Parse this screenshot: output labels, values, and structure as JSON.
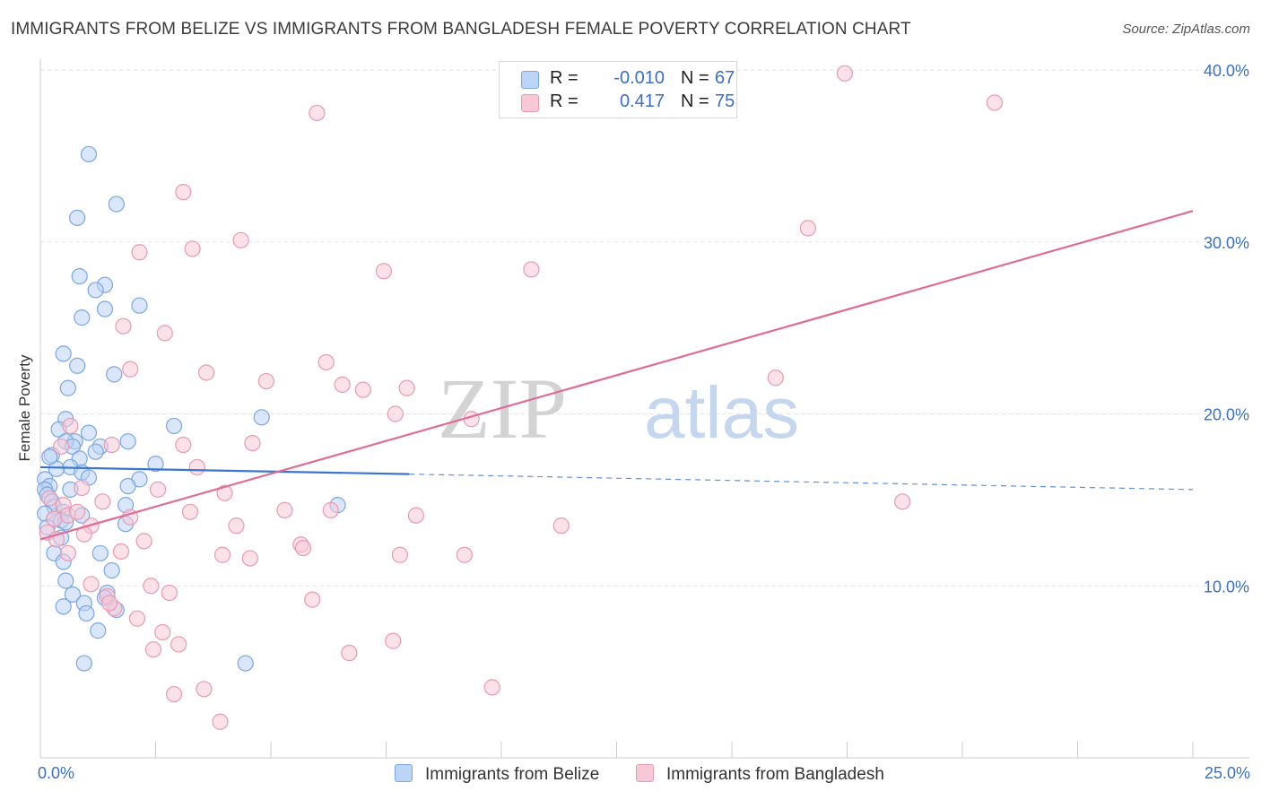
{
  "chart_data": {
    "type": "scatter",
    "title": "IMMIGRANTS FROM BELIZE VS IMMIGRANTS FROM BANGLADESH FEMALE POVERTY CORRELATION CHART",
    "source": "Source: ZipAtlas.com",
    "ylabel": "Female Poverty",
    "xlabel": "",
    "xlim": [
      0,
      25
    ],
    "ylim": [
      0,
      40
    ],
    "x_tick_labels": [
      "0.0%",
      "25.0%"
    ],
    "y_ticks": [
      10,
      20,
      30,
      40
    ],
    "y_tick_labels": [
      "10.0%",
      "20.0%",
      "30.0%",
      "40.0%"
    ],
    "watermark": {
      "part1": "ZIP",
      "part2": "atlas"
    },
    "legend": {
      "r_label": "R =",
      "n_label": "N =",
      "entries": [
        {
          "name": "Immigrants from Belize",
          "r": "-0.010",
          "n": "67"
        },
        {
          "name": "Immigrants from Bangladesh",
          "r": "0.417",
          "n": "75"
        }
      ]
    },
    "colors": {
      "belize_fill": "#bcd4f5",
      "belize_stroke": "#7aa6e3",
      "belize_line": "#3a76d0",
      "bangladesh_fill": "#f8c8d6",
      "bangladesh_stroke": "#e89ab3",
      "bangladesh_line": "#e06c95",
      "axis_text": "#3a6fc4",
      "grid": "#e2e2e2"
    },
    "series": [
      {
        "name": "Immigrants from Belize",
        "trend": {
          "x0": 0,
          "y0": 16.9,
          "x1": 8.0,
          "y1": 16.5,
          "dash_to_x": 25,
          "dash_to_y": 15.6
        },
        "points": [
          [
            1.05,
            35.1
          ],
          [
            0.8,
            31.4
          ],
          [
            1.65,
            32.2
          ],
          [
            0.85,
            28.0
          ],
          [
            1.4,
            27.5
          ],
          [
            1.2,
            27.2
          ],
          [
            1.4,
            26.1
          ],
          [
            2.15,
            26.3
          ],
          [
            0.9,
            25.6
          ],
          [
            0.5,
            23.5
          ],
          [
            0.8,
            22.8
          ],
          [
            1.6,
            22.3
          ],
          [
            0.6,
            21.5
          ],
          [
            0.55,
            19.7
          ],
          [
            2.9,
            19.3
          ],
          [
            4.8,
            19.8
          ],
          [
            0.4,
            19.1
          ],
          [
            1.05,
            18.9
          ],
          [
            0.75,
            18.4
          ],
          [
            0.55,
            18.4
          ],
          [
            1.9,
            18.4
          ],
          [
            1.3,
            18.1
          ],
          [
            0.7,
            18.1
          ],
          [
            0.25,
            17.6
          ],
          [
            0.85,
            17.4
          ],
          [
            1.2,
            17.8
          ],
          [
            0.65,
            16.9
          ],
          [
            2.5,
            17.1
          ],
          [
            0.35,
            16.8
          ],
          [
            0.9,
            16.6
          ],
          [
            1.05,
            16.3
          ],
          [
            0.1,
            16.2
          ],
          [
            2.15,
            16.2
          ],
          [
            0.2,
            15.8
          ],
          [
            1.9,
            15.8
          ],
          [
            0.65,
            15.6
          ],
          [
            0.1,
            15.6
          ],
          [
            0.15,
            15.3
          ],
          [
            0.25,
            14.9
          ],
          [
            0.3,
            14.6
          ],
          [
            0.5,
            14.3
          ],
          [
            1.85,
            14.7
          ],
          [
            6.45,
            14.7
          ],
          [
            0.1,
            14.2
          ],
          [
            0.9,
            14.1
          ],
          [
            0.3,
            13.9
          ],
          [
            0.45,
            13.8
          ],
          [
            0.55,
            13.7
          ],
          [
            0.15,
            13.4
          ],
          [
            0.45,
            12.8
          ],
          [
            0.3,
            11.9
          ],
          [
            1.3,
            11.9
          ],
          [
            1.55,
            10.9
          ],
          [
            0.55,
            10.3
          ],
          [
            0.7,
            9.5
          ],
          [
            1.45,
            9.6
          ],
          [
            1.4,
            9.3
          ],
          [
            0.95,
            9.0
          ],
          [
            0.5,
            8.8
          ],
          [
            1.0,
            8.4
          ],
          [
            1.65,
            8.6
          ],
          [
            1.25,
            7.4
          ],
          [
            0.95,
            5.5
          ],
          [
            4.45,
            5.5
          ],
          [
            1.85,
            13.6
          ],
          [
            0.2,
            17.5
          ],
          [
            0.5,
            11.4
          ]
        ]
      },
      {
        "name": "Immigrants from Bangladesh",
        "trend": {
          "x0": 0,
          "y0": 12.7,
          "x1": 25,
          "y1": 31.8
        },
        "points": [
          [
            17.45,
            39.8
          ],
          [
            6.0,
            37.5
          ],
          [
            20.7,
            38.1
          ],
          [
            3.1,
            32.9
          ],
          [
            16.65,
            30.8
          ],
          [
            4.35,
            30.1
          ],
          [
            2.15,
            29.4
          ],
          [
            3.3,
            29.6
          ],
          [
            7.45,
            28.3
          ],
          [
            10.65,
            28.4
          ],
          [
            1.8,
            25.1
          ],
          [
            2.7,
            24.7
          ],
          [
            6.2,
            23.0
          ],
          [
            1.95,
            22.6
          ],
          [
            3.6,
            22.4
          ],
          [
            4.9,
            21.9
          ],
          [
            6.55,
            21.7
          ],
          [
            7.0,
            21.4
          ],
          [
            7.95,
            21.5
          ],
          [
            15.95,
            22.1
          ],
          [
            7.7,
            20.0
          ],
          [
            9.35,
            19.7
          ],
          [
            0.65,
            19.3
          ],
          [
            1.55,
            18.2
          ],
          [
            3.1,
            18.2
          ],
          [
            4.6,
            18.3
          ],
          [
            0.45,
            18.1
          ],
          [
            3.4,
            16.9
          ],
          [
            0.9,
            15.7
          ],
          [
            2.55,
            15.6
          ],
          [
            4.0,
            15.4
          ],
          [
            0.2,
            15.1
          ],
          [
            0.5,
            14.7
          ],
          [
            18.7,
            14.9
          ],
          [
            3.25,
            14.3
          ],
          [
            5.3,
            14.4
          ],
          [
            6.3,
            14.4
          ],
          [
            8.15,
            14.1
          ],
          [
            0.6,
            14.1
          ],
          [
            1.95,
            14.0
          ],
          [
            0.3,
            13.9
          ],
          [
            1.1,
            13.5
          ],
          [
            4.25,
            13.5
          ],
          [
            11.3,
            13.5
          ],
          [
            0.95,
            13.0
          ],
          [
            0.15,
            13.1
          ],
          [
            2.25,
            12.6
          ],
          [
            5.65,
            12.4
          ],
          [
            5.7,
            12.2
          ],
          [
            0.6,
            11.9
          ],
          [
            1.75,
            12.0
          ],
          [
            3.95,
            11.8
          ],
          [
            4.55,
            11.6
          ],
          [
            7.8,
            11.8
          ],
          [
            9.2,
            11.8
          ],
          [
            2.4,
            10.0
          ],
          [
            1.1,
            10.1
          ],
          [
            1.45,
            9.4
          ],
          [
            2.8,
            9.6
          ],
          [
            5.9,
            9.2
          ],
          [
            1.6,
            8.7
          ],
          [
            2.1,
            8.1
          ],
          [
            2.65,
            7.3
          ],
          [
            3.0,
            6.6
          ],
          [
            7.65,
            6.8
          ],
          [
            2.45,
            6.3
          ],
          [
            6.7,
            6.1
          ],
          [
            2.9,
            3.7
          ],
          [
            3.55,
            4.0
          ],
          [
            9.8,
            4.1
          ],
          [
            3.9,
            2.1
          ],
          [
            0.8,
            14.3
          ],
          [
            1.35,
            14.9
          ],
          [
            0.35,
            12.7
          ],
          [
            1.5,
            9.0
          ]
        ]
      }
    ]
  }
}
